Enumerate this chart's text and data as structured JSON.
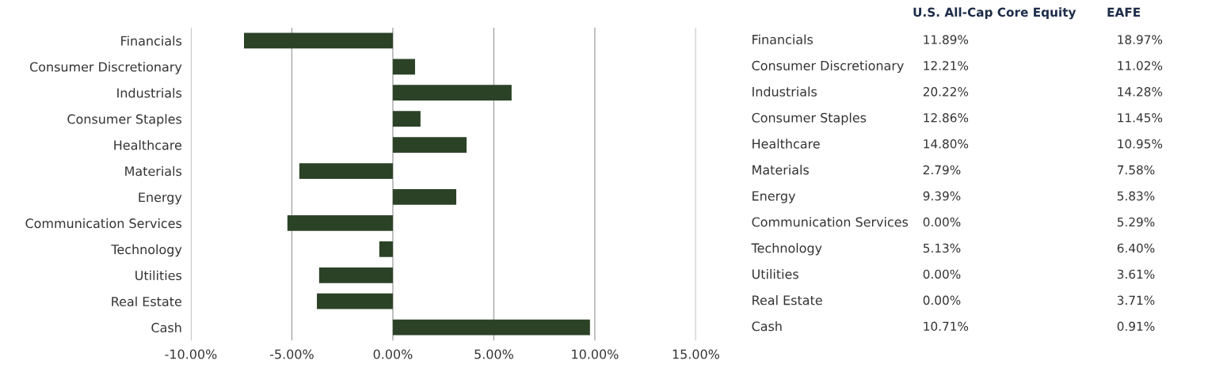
{
  "chart_data": [
    {
      "type": "bar",
      "orientation": "horizontal",
      "categories": [
        "Financials",
        "Consumer Discretionary",
        "Industrials",
        "Consumer Staples",
        "Healthcare",
        "Materials",
        "Energy",
        "Communication Services",
        "Technology",
        "Utilities",
        "Real Estate",
        "Cash"
      ],
      "values": [
        -7.37,
        1.1,
        5.88,
        1.37,
        3.65,
        -4.63,
        3.14,
        -5.22,
        -0.67,
        -3.65,
        -3.76,
        9.76
      ],
      "color": "#2b4226",
      "xlim": [
        -10,
        15
      ],
      "xticks": [
        {
          "value": -10,
          "label": "-10.00%"
        },
        {
          "value": -5,
          "label": "-5.00%"
        },
        {
          "value": 0,
          "label": "0.00%"
        },
        {
          "value": 5,
          "label": "5.00%"
        },
        {
          "value": 10,
          "label": "10.00%"
        },
        {
          "value": 15,
          "label": "15.00%"
        }
      ],
      "grid": "x",
      "legend": false
    },
    {
      "type": "other",
      "categories": [
        "Financials",
        "Consumer Discretionary",
        "Industrials",
        "Consumer Staples",
        "Healthcare",
        "Materials",
        "Energy",
        "Communication Services",
        "Technology",
        "Utilities",
        "Real Estate",
        "Cash"
      ],
      "series": [
        {
          "name": "U.S. All-Cap Core Equity",
          "values": [
            11.89,
            12.21,
            20.22,
            12.86,
            14.8,
            2.79,
            9.39,
            0.0,
            5.13,
            0.0,
            0.0,
            10.71
          ],
          "value_labels": [
            "11.89%",
            "12.21%",
            "20.22%",
            "12.86%",
            "14.80%",
            "2.79%",
            "9.39%",
            "0.00%",
            "5.13%",
            "0.00%",
            "0.00%",
            "10.71%"
          ]
        },
        {
          "name": "EAFE",
          "values": [
            18.97,
            11.02,
            14.28,
            11.45,
            10.95,
            7.58,
            5.83,
            5.29,
            6.4,
            3.61,
            3.71,
            0.91
          ],
          "value_labels": [
            "18.97%",
            "11.02%",
            "14.28%",
            "11.45%",
            "10.95%",
            "7.58%",
            "5.83%",
            "5.29%",
            "6.40%",
            "3.61%",
            "3.71%",
            "0.91%"
          ]
        }
      ]
    }
  ]
}
